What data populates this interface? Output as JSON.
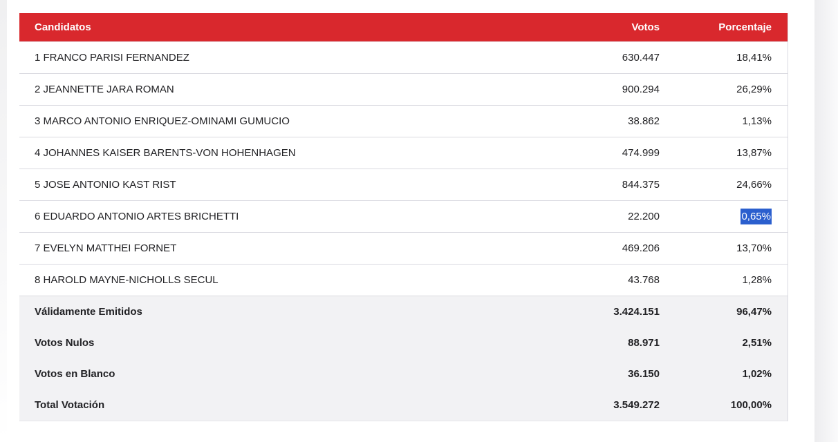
{
  "theme": {
    "header-red": "#d9282d",
    "selection-blue": "#2b5fce",
    "summary-bg": "#f2f2f4",
    "divider": "#d9d9e0",
    "text": "#212124",
    "header-text": "#ffffff"
  },
  "table": {
    "header": {
      "candidates": "Candidatos",
      "votes": "Votos",
      "percentage": "Porcentaje"
    },
    "rows": [
      {
        "name": "1 FRANCO PARISI FERNANDEZ",
        "votes": "630.447",
        "pct": "18,41%"
      },
      {
        "name": "2 JEANNETTE JARA ROMAN",
        "votes": "900.294",
        "pct": "26,29%"
      },
      {
        "name": "3 MARCO ANTONIO ENRIQUEZ-OMINAMI GUMUCIO",
        "votes": "38.862",
        "pct": "1,13%"
      },
      {
        "name": "4 JOHANNES KAISER BARENTS-VON HOHENHAGEN",
        "votes": "474.999",
        "pct": "13,87%"
      },
      {
        "name": "5 JOSE ANTONIO KAST RIST",
        "votes": "844.375",
        "pct": "24,66%"
      },
      {
        "name": "6 EDUARDO ANTONIO ARTES BRICHETTI",
        "votes": "22.200",
        "pct": "0,65%",
        "pct_selected": true
      },
      {
        "name": "7 EVELYN MATTHEI FORNET",
        "votes": "469.206",
        "pct": "13,70%"
      },
      {
        "name": "8 HAROLD MAYNE-NICHOLLS SECUL",
        "votes": "43.768",
        "pct": "1,28%"
      }
    ],
    "summary": [
      {
        "label": "Válidamente Emitidos",
        "votes": "3.424.151",
        "pct": "96,47%"
      },
      {
        "label": "Votos Nulos",
        "votes": "88.971",
        "pct": "2,51%"
      },
      {
        "label": "Votos en Blanco",
        "votes": "36.150",
        "pct": "1,02%"
      },
      {
        "label": "Total Votación",
        "votes": "3.549.272",
        "pct": "100,00%"
      }
    ]
  }
}
